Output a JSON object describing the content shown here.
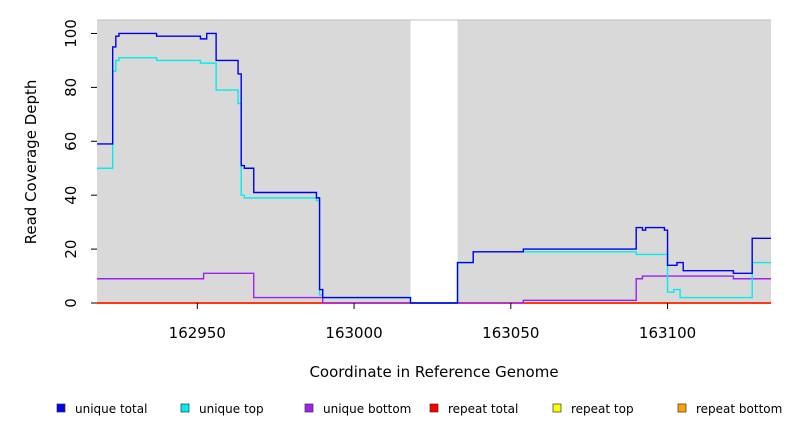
{
  "chart_data": {
    "type": "line",
    "title": "",
    "xlabel": "Coordinate in Reference Genome",
    "ylabel": "Read Coverage Depth",
    "xlim": [
      162918,
      163133
    ],
    "ylim": [
      0,
      105
    ],
    "xticks": [
      162950,
      163000,
      163050,
      163100
    ],
    "yticks": [
      0,
      20,
      40,
      60,
      80,
      100
    ],
    "shaded_regions": [
      [
        162918,
        163018
      ],
      [
        163033,
        163133
      ]
    ],
    "shade_color": "#d9d9d9",
    "legend_position": "bottom",
    "series": [
      {
        "name": "unique total",
        "color": "#0000ee",
        "x": [
          162918,
          162923,
          162924,
          162925,
          162937,
          162951,
          162953,
          162956,
          162963,
          162964,
          162965,
          162968,
          162988,
          162989,
          162990,
          163018,
          163033,
          163038,
          163054,
          163090,
          163092,
          163093,
          163099,
          163100,
          163103,
          163105,
          163121,
          163127,
          163133
        ],
        "y": [
          59,
          95,
          99,
          100,
          99,
          98,
          100,
          90,
          85,
          51,
          50,
          41,
          39,
          5,
          2,
          0,
          15,
          19,
          20,
          28,
          27,
          28,
          27,
          14,
          15,
          12,
          11,
          24,
          24
        ]
      },
      {
        "name": "unique top",
        "color": "#00eeee",
        "x": [
          162918,
          162923,
          162924,
          162925,
          162937,
          162951,
          162956,
          162963,
          162964,
          162965,
          162988,
          162989,
          162990,
          163018,
          163033,
          163038,
          163054,
          163090,
          163100,
          163102,
          163104,
          163127,
          163133
        ],
        "y": [
          50,
          86,
          90,
          91,
          90,
          89,
          79,
          74,
          40,
          39,
          38,
          3,
          2,
          0,
          15,
          19,
          19,
          18,
          4,
          5,
          2,
          15,
          15
        ]
      },
      {
        "name": "unique bottom",
        "color": "#a020f0",
        "x": [
          162918,
          162952,
          162968,
          162990,
          163018,
          163054,
          163090,
          163092,
          163121,
          163133
        ],
        "y": [
          9,
          11,
          2,
          0,
          0,
          1,
          9,
          10,
          9,
          9
        ]
      },
      {
        "name": "repeat total",
        "color": "#ff0000",
        "x": [
          162918,
          163133
        ],
        "y": [
          0,
          0
        ]
      },
      {
        "name": "repeat top",
        "color": "#ffff00",
        "x": [
          162918,
          163133
        ],
        "y": [
          0,
          0
        ]
      },
      {
        "name": "repeat bottom",
        "color": "#ffa500",
        "x": [
          162918,
          163133
        ],
        "y": [
          0,
          0
        ]
      }
    ]
  }
}
